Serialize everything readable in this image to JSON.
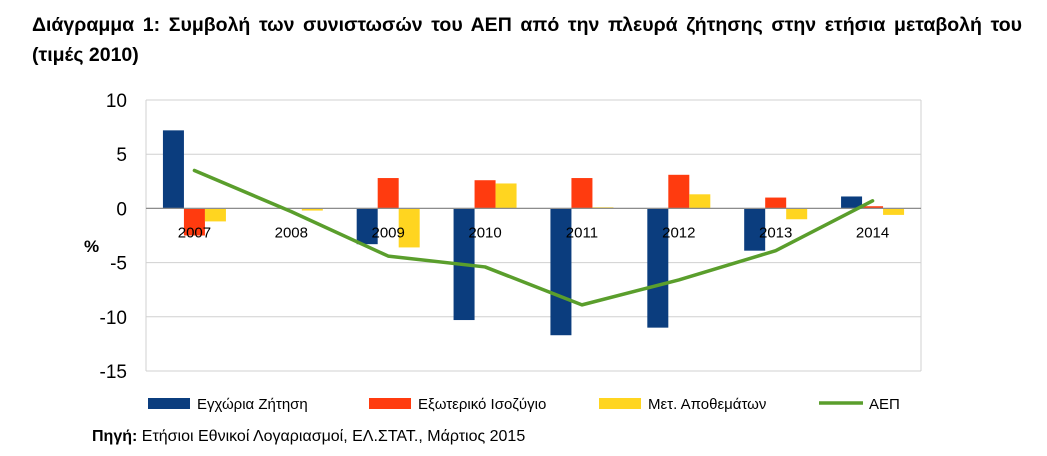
{
  "title": {
    "line": "Διάγραμμα 1: Συμβολή των συνιστωσών του ΑΕΠ από την πλευρά ζήτησης στην ετήσια μεταβολή του (τιμές 2010)"
  },
  "source": {
    "label": "Πηγή:",
    "text": "Ετήσιοι Εθνικοί Λογαριασμοί, ΕΛ.ΣΤΑΤ., Μάρτιος 2015"
  },
  "chart_data": {
    "type": "bar",
    "ylabel": "%",
    "ylim": [
      -15,
      10
    ],
    "yticks": [
      10,
      5,
      0,
      -5,
      -10,
      -15
    ],
    "grid": true,
    "legend_position": "bottom",
    "categories": [
      "2007",
      "2008",
      "2009",
      "2010",
      "2011",
      "2012",
      "2013",
      "2014"
    ],
    "series": [
      {
        "name": "Εγχώρια Ζήτηση",
        "type": "bar",
        "color": "#0B3D7E",
        "values": [
          7.2,
          0.0,
          -3.3,
          -10.3,
          -11.7,
          -11.0,
          -3.9,
          1.1
        ]
      },
      {
        "name": "Εξωτερικό Ισοζύγιο",
        "type": "bar",
        "color": "#FF3B0F",
        "values": [
          -2.5,
          0.0,
          2.8,
          2.6,
          2.8,
          3.1,
          1.0,
          0.2
        ]
      },
      {
        "name": "Μετ. Αποθεμάτων",
        "type": "bar",
        "color": "#FFD520",
        "values": [
          -1.2,
          -0.2,
          -3.6,
          2.3,
          0.1,
          1.3,
          -1.0,
          -0.6
        ]
      },
      {
        "name": "ΑΕΠ",
        "type": "line",
        "color": "#5A9E2C",
        "values": [
          3.5,
          -0.3,
          -4.4,
          -5.4,
          -8.9,
          -6.6,
          -3.9,
          0.7
        ]
      }
    ]
  }
}
